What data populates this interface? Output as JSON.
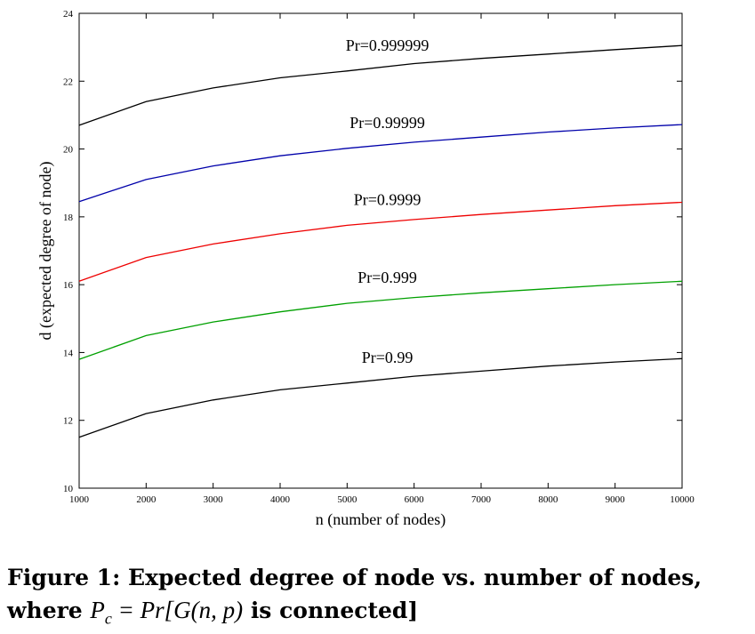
{
  "chart_data": {
    "type": "line",
    "xlabel": "n (number of nodes)",
    "ylabel": "d (expected degree of node)",
    "xlim": [
      1000,
      10000
    ],
    "ylim": [
      10,
      24
    ],
    "xticks": [
      1000,
      2000,
      3000,
      4000,
      5000,
      6000,
      7000,
      8000,
      9000,
      10000
    ],
    "yticks": [
      10,
      12,
      14,
      16,
      18,
      20,
      22,
      24
    ],
    "grid": false,
    "legend": "none (inline labels above each curve)",
    "x": [
      1000,
      2000,
      3000,
      4000,
      5000,
      6000,
      7000,
      8000,
      9000,
      10000
    ],
    "series": [
      {
        "name": "Pr=0.99",
        "color": "#000000",
        "values": [
          11.5,
          12.2,
          12.6,
          12.9,
          13.1,
          13.3,
          13.45,
          13.6,
          13.72,
          13.82
        ]
      },
      {
        "name": "Pr=0.999",
        "color": "#00a000",
        "values": [
          13.8,
          14.5,
          14.9,
          15.2,
          15.45,
          15.62,
          15.76,
          15.88,
          16.0,
          16.1
        ]
      },
      {
        "name": "Pr=0.9999",
        "color": "#ee0000",
        "values": [
          16.1,
          16.8,
          17.2,
          17.5,
          17.75,
          17.92,
          18.07,
          18.2,
          18.33,
          18.43
        ]
      },
      {
        "name": "Pr=0.99999",
        "color": "#0000aa",
        "values": [
          18.45,
          19.1,
          19.5,
          19.8,
          20.02,
          20.2,
          20.35,
          20.5,
          20.62,
          20.72
        ]
      },
      {
        "name": "Pr=0.999999",
        "color": "#000000",
        "values": [
          20.7,
          21.4,
          21.8,
          22.1,
          22.3,
          22.52,
          22.67,
          22.8,
          22.93,
          23.05
        ]
      }
    ]
  },
  "caption": {
    "prefix": "Figure 1:  Expected degree of node vs.  number of nodes, where ",
    "math_lhs": "P",
    "math_sub": "c",
    "math_eq": " = Pr[G(n, p)",
    "suffix": " is connected]"
  }
}
